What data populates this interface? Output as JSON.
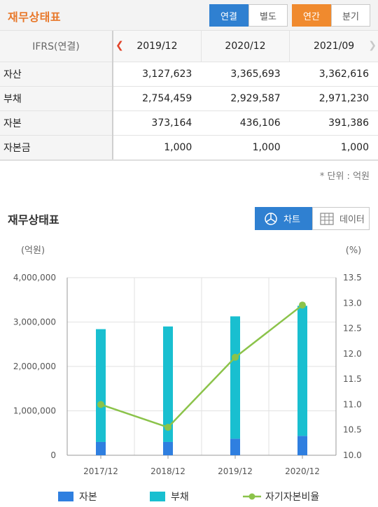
{
  "header": {
    "title": "재무상태표",
    "buttons": [
      {
        "label": "연결",
        "active": true
      },
      {
        "label": "별도",
        "active": false
      },
      {
        "label": "연간",
        "active": true
      },
      {
        "label": "분기",
        "active": false
      }
    ]
  },
  "table": {
    "label_header": "IFRS(연결)",
    "periods": [
      "2019/12",
      "2020/12",
      "2021/09"
    ],
    "rows": [
      {
        "label": "자산",
        "values": [
          "3,127,623",
          "3,365,693",
          "3,362,616"
        ]
      },
      {
        "label": "부채",
        "values": [
          "2,754,459",
          "2,929,587",
          "2,971,230"
        ]
      },
      {
        "label": "자본",
        "values": [
          "373,164",
          "436,106",
          "391,386"
        ]
      },
      {
        "label": "자본금",
        "values": [
          "1,000",
          "1,000",
          "1,000"
        ]
      }
    ],
    "unit_note": "* 단위 : 억원",
    "prev_icon": "chevron-left-icon",
    "next_icon": "chevron-right-icon"
  },
  "section": {
    "title": "재무상태표",
    "chart_toggle": {
      "label": "차트",
      "icon": "pie-chart-icon",
      "active": true
    },
    "data_toggle": {
      "label": "데이터",
      "icon": "table-icon",
      "active": false
    }
  },
  "colors": {
    "accent_orange": "#f08a2e",
    "accent_blue": "#2f80d1",
    "capital": "#2f7fe0",
    "liability": "#19bfd0",
    "ratio": "#8bc34a"
  },
  "chart_data": {
    "type": "bar",
    "stacked": true,
    "categories": [
      "2017/12",
      "2018/12",
      "2019/12",
      "2020/12"
    ],
    "series": [
      {
        "name": "자본",
        "type": "bar",
        "axis": "left",
        "values": [
          300000,
          300000,
          373164,
          436106
        ]
      },
      {
        "name": "부채",
        "type": "bar",
        "axis": "left",
        "values": [
          2540000,
          2600000,
          2754459,
          2929587
        ]
      },
      {
        "name": "자기자본비율",
        "type": "line",
        "axis": "right",
        "values": [
          11.0,
          10.55,
          11.93,
          12.96
        ]
      }
    ],
    "ylabel": "(억원)",
    "y2label": "(%)",
    "ylim": [
      0,
      4000000
    ],
    "y2lim": [
      10.0,
      13.5
    ],
    "yticks": [
      "0",
      "1,000,000",
      "2,000,000",
      "3,000,000",
      "4,000,000"
    ],
    "y2ticks": [
      "10.0",
      "10.5",
      "11.0",
      "11.5",
      "12.0",
      "12.5",
      "13.0",
      "13.5"
    ],
    "grid": true,
    "legend_position": "bottom"
  }
}
